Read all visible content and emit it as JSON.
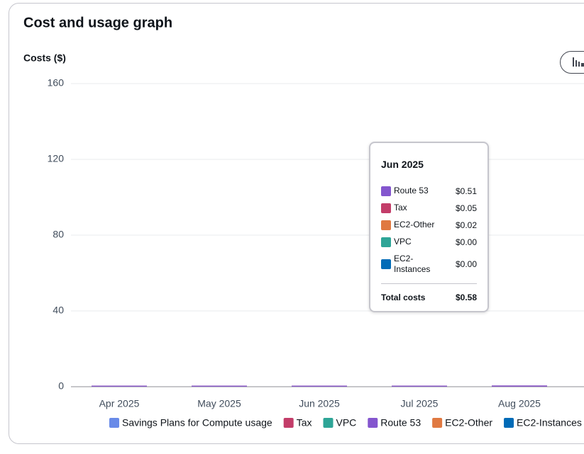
{
  "chart_data": {
    "type": "stacked-bar",
    "title": "Cost and usage graph",
    "y_label": "Costs ($)",
    "categories": [
      "Apr 2025",
      "May 2025",
      "Jun 2025",
      "Jul 2025",
      "Aug 2025"
    ],
    "series": [
      {
        "name": "Savings Plans for Compute usage",
        "color": "#688ae8",
        "values": [
          0,
          0,
          0,
          0,
          0
        ]
      },
      {
        "name": "Tax",
        "color": "#c33d69",
        "values": [
          0.05,
          0.05,
          0.05,
          0.05,
          0.06
        ]
      },
      {
        "name": "VPC",
        "color": "#2ea597",
        "values": [
          0,
          0,
          0,
          0,
          0
        ]
      },
      {
        "name": "Route 53",
        "color": "#8456ce",
        "values": [
          0.51,
          0.51,
          0.51,
          0.51,
          0.6
        ]
      },
      {
        "name": "EC2-Other",
        "color": "#e07941",
        "values": [
          0.02,
          0.02,
          0.02,
          0.02,
          0.02
        ]
      },
      {
        "name": "EC2-Instances",
        "color": "#016bb7",
        "values": [
          0,
          0,
          0,
          0,
          0
        ]
      }
    ],
    "ylim": [
      0,
      160
    ],
    "yticks": [
      0,
      40,
      80,
      120,
      160
    ],
    "grid": true
  },
  "tooltip": {
    "title": "Jun 2025",
    "rows": [
      {
        "name": "Route 53",
        "color": "#8456ce",
        "value": "$0.51"
      },
      {
        "name": "Tax",
        "color": "#c33d69",
        "value": "$0.05"
      },
      {
        "name": "EC2-Other",
        "color": "#e07941",
        "value": "$0.02"
      },
      {
        "name": "VPC",
        "color": "#2ea597",
        "value": "$0.00"
      },
      {
        "name": "EC2-Instances",
        "color": "#016bb7",
        "value": "$0.00"
      }
    ],
    "total_label": "Total costs",
    "total": "$0.58"
  }
}
